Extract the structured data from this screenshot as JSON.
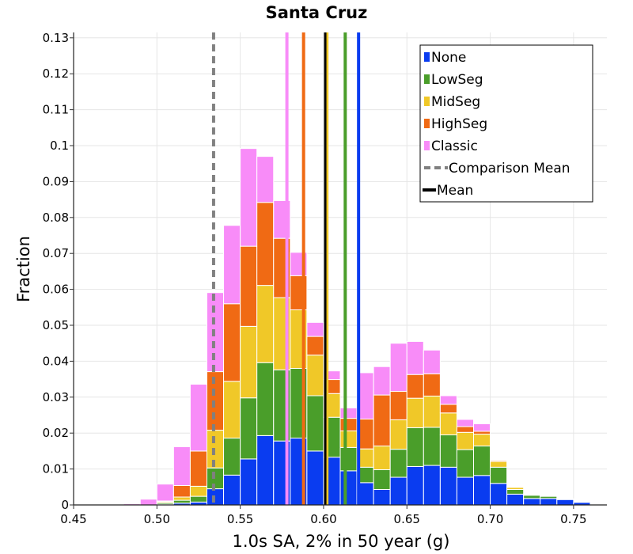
{
  "chart_data": {
    "type": "bar",
    "stacked": true,
    "title": "Santa Cruz",
    "xlabel": "1.0s SA, 2% in 50 year (g)",
    "ylabel": "Fraction",
    "xlim": [
      0.45,
      0.77
    ],
    "ylim": [
      0,
      0.1315
    ],
    "xticks": [
      0.45,
      0.5,
      0.55,
      0.6,
      0.65,
      0.7,
      0.75
    ],
    "xtick_labels": [
      "0.45",
      "0.50",
      "0.55",
      "0.60",
      "0.65",
      "0.70",
      "0.75"
    ],
    "yticks": [
      0,
      0.01,
      0.02,
      0.03,
      0.04,
      0.05,
      0.06,
      0.07,
      0.08,
      0.09,
      0.1,
      0.11,
      0.12,
      0.13
    ],
    "ytick_labels": [
      "0",
      "0.01",
      "0.02",
      "0.03",
      "0.04",
      "0.05",
      "0.06",
      "0.07",
      "0.08",
      "0.09",
      "0.1",
      "0.11",
      "0.12",
      "0.13"
    ],
    "bin_width": 0.01,
    "bin_starts": [
      0.48,
      0.49,
      0.5,
      0.51,
      0.52,
      0.53,
      0.54,
      0.55,
      0.56,
      0.57,
      0.58,
      0.59,
      0.6,
      0.61,
      0.62,
      0.63,
      0.64,
      0.65,
      0.66,
      0.67,
      0.68,
      0.69,
      0.7,
      0.71,
      0.72,
      0.73,
      0.74,
      0.75
    ],
    "series": [
      {
        "name": "None",
        "color": "#0a3cf0",
        "values": [
          0,
          0,
          0.0002,
          0.0005,
          0.0008,
          0.0045,
          0.0083,
          0.0128,
          0.0193,
          0.0178,
          0.0186,
          0.015,
          0.0133,
          0.0095,
          0.0062,
          0.0043,
          0.0077,
          0.0107,
          0.011,
          0.0105,
          0.0077,
          0.0082,
          0.006,
          0.003,
          0.0018,
          0.0018,
          0.0015,
          0.0007
        ]
      },
      {
        "name": "LowSeg",
        "color": "#4a9e2a",
        "values": [
          0,
          0,
          0.0004,
          0.0008,
          0.0016,
          0.0058,
          0.0103,
          0.017,
          0.0203,
          0.0198,
          0.0194,
          0.0154,
          0.0111,
          0.0065,
          0.0043,
          0.0055,
          0.0078,
          0.0108,
          0.0106,
          0.009,
          0.0077,
          0.0082,
          0.0045,
          0.0013,
          0.0009,
          0.0006,
          0.0002,
          0
        ]
      },
      {
        "name": "MidSeg",
        "color": "#f0c828",
        "values": [
          0,
          0,
          0.0003,
          0.0009,
          0.0028,
          0.0105,
          0.0158,
          0.0199,
          0.0215,
          0.0201,
          0.0163,
          0.0113,
          0.0066,
          0.0046,
          0.0051,
          0.0066,
          0.0082,
          0.0082,
          0.0087,
          0.0061,
          0.0048,
          0.0033,
          0.0016,
          0.0006,
          0.0002,
          0.0001,
          0,
          0
        ]
      },
      {
        "name": "HighSeg",
        "color": "#f06a14",
        "values": [
          0,
          0,
          0.0002,
          0.0032,
          0.0098,
          0.0163,
          0.0216,
          0.0223,
          0.0231,
          0.0165,
          0.0095,
          0.0052,
          0.0039,
          0.0035,
          0.0083,
          0.0142,
          0.0079,
          0.0066,
          0.0062,
          0.0024,
          0.0016,
          0.0008,
          0.0003,
          0.0002,
          0,
          0,
          0,
          0
        ]
      },
      {
        "name": "Classic",
        "color": "#f88cf8",
        "values": [
          0.0003,
          0.0016,
          0.0047,
          0.0108,
          0.0186,
          0.022,
          0.0218,
          0.0272,
          0.0128,
          0.0105,
          0.0065,
          0.0039,
          0.0024,
          0.0029,
          0.0129,
          0.0079,
          0.0134,
          0.0092,
          0.0066,
          0.0024,
          0.002,
          0.0021,
          0.0002,
          0.0002,
          0.0002,
          0.0001,
          0,
          0
        ]
      }
    ],
    "reference_lines": [
      {
        "name": "Comparison Mean",
        "x": 0.534,
        "color": "#808080",
        "style": "dashed"
      },
      {
        "name": "Classic mean",
        "x": 0.578,
        "color": "#f88cf8",
        "style": "solid"
      },
      {
        "name": "HighSeg mean",
        "x": 0.588,
        "color": "#f06a14",
        "style": "solid"
      },
      {
        "name": "MidSeg mean",
        "x": 0.602,
        "color": "#f0c828",
        "style": "solid"
      },
      {
        "name": "Mean",
        "x": 0.601,
        "color": "#000000",
        "style": "solid"
      },
      {
        "name": "LowSeg mean",
        "x": 0.613,
        "color": "#4a9e2a",
        "style": "solid"
      },
      {
        "name": "None mean",
        "x": 0.621,
        "color": "#0a3cf0",
        "style": "solid"
      }
    ],
    "legend": {
      "position": "top-right",
      "entries": [
        {
          "label": "None",
          "color": "#0a3cf0",
          "kind": "swatch"
        },
        {
          "label": "LowSeg",
          "color": "#4a9e2a",
          "kind": "swatch"
        },
        {
          "label": "MidSeg",
          "color": "#f0c828",
          "kind": "swatch"
        },
        {
          "label": "HighSeg",
          "color": "#f06a14",
          "kind": "swatch"
        },
        {
          "label": "Classic",
          "color": "#f88cf8",
          "kind": "swatch"
        },
        {
          "label": "Comparison Mean",
          "color": "#808080",
          "kind": "dashed"
        },
        {
          "label": "Mean",
          "color": "#000000",
          "kind": "line"
        }
      ]
    }
  }
}
